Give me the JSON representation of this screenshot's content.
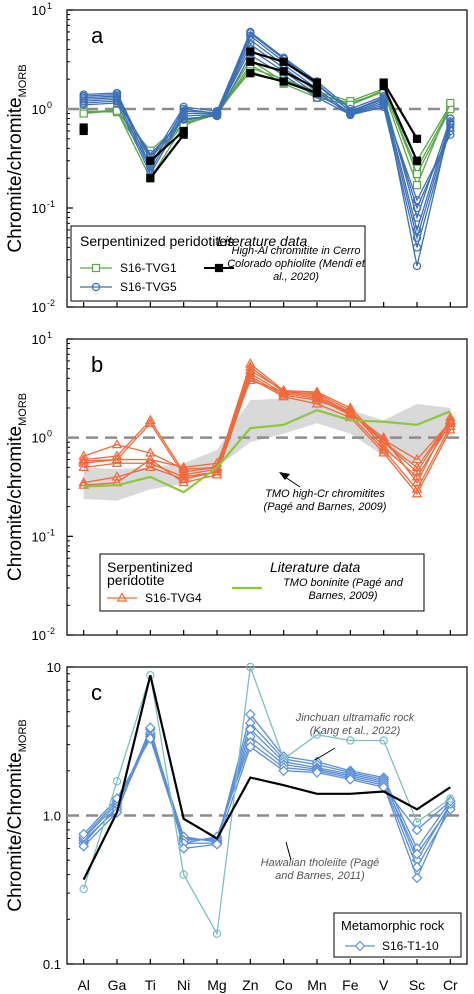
{
  "chart_data": {
    "type": "line",
    "categories": [
      "Al",
      "Ga",
      "Ti",
      "Ni",
      "Mg",
      "Zn",
      "Co",
      "Mn",
      "Fe",
      "V",
      "Sc",
      "Cr"
    ],
    "yscale": "log",
    "ylim": [
      0.01,
      10
    ],
    "reference_line": 1,
    "ylabel_main": "Chromite/chromite",
    "ylabel_sub": "MORB",
    "ylabel_main_c": "Chromite/Chromite",
    "ytick_labels": [
      "10",
      "10",
      "10",
      "10"
    ],
    "ytick_exponents": [
      "1",
      "0",
      "-1",
      "-2"
    ],
    "ytick_labels_c": [
      "10",
      "1.0",
      "0.1"
    ],
    "panels": [
      {
        "label": "a",
        "legend": {
          "sample_heading": "Serpentinized peridotites",
          "literature_heading": "Literature data",
          "items": [
            "S16-TVG1",
            "S16-TVG5"
          ],
          "literature_item": "High-Al chromitite in Cerro Colorado ophiolite (Mendi et al., 2020)"
        },
        "series": [
          {
            "name": "S16-TVG1",
            "color": "#5aa84a",
            "marker": "square-open",
            "lines": [
              [
                0.93,
                0.95,
                0.38,
                0.75,
                0.92,
                3.1,
                1.9,
                1.4,
                1.15,
                1.5,
                0.3,
                1.1
              ],
              [
                0.92,
                0.98,
                0.32,
                0.72,
                0.9,
                2.8,
                1.8,
                1.3,
                1.1,
                1.55,
                0.25,
                1.05
              ],
              [
                0.95,
                0.93,
                0.28,
                0.7,
                0.88,
                2.6,
                2.0,
                1.5,
                1.2,
                1.6,
                0.22,
                1.0
              ],
              [
                0.9,
                0.96,
                0.2,
                0.68,
                0.93,
                2.4,
                1.85,
                1.45,
                1.1,
                1.5,
                0.17,
                1.15
              ]
            ]
          },
          {
            "name": "S16-TVG5",
            "color": "#3d6fb6",
            "marker": "circle-open",
            "lines": [
              [
                1.4,
                1.45,
                0.3,
                1.05,
                0.95,
                6.0,
                3.3,
                1.9,
                1.0,
                1.35,
                0.08,
                0.8
              ],
              [
                1.3,
                1.35,
                0.27,
                0.95,
                0.92,
                5.5,
                3.0,
                1.75,
                0.95,
                1.25,
                0.06,
                0.75
              ],
              [
                1.2,
                1.25,
                0.24,
                0.9,
                0.9,
                5.0,
                2.8,
                1.6,
                0.9,
                1.15,
                0.05,
                0.7
              ],
              [
                1.1,
                1.15,
                0.22,
                0.85,
                0.88,
                4.5,
                2.6,
                1.5,
                0.87,
                1.05,
                0.04,
                0.65
              ],
              [
                1.35,
                1.4,
                0.26,
                1.0,
                0.9,
                4.0,
                2.4,
                1.4,
                0.92,
                1.2,
                0.1,
                0.6
              ],
              [
                1.25,
                1.3,
                0.33,
                0.8,
                0.85,
                3.5,
                2.2,
                1.3,
                0.88,
                1.1,
                0.12,
                0.55
              ],
              [
                1.15,
                1.2,
                0.35,
                0.78,
                0.86,
                5.8,
                3.2,
                1.8,
                0.95,
                1.3,
                0.026,
                0.72
              ]
            ]
          },
          {
            "name": "Mendi et al., 2020",
            "color": "#000000",
            "marker": "square-filled",
            "lines": [
              [
                0.65,
                null,
                0.3,
                0.6,
                null,
                3.8,
                3.0,
                1.85,
                null,
                1.85,
                0.5,
                null
              ],
              [
                0.6,
                null,
                0.2,
                0.55,
                null,
                3.0,
                2.4,
                1.6,
                null,
                1.7,
                0.3,
                null
              ],
              [
                null,
                null,
                null,
                null,
                null,
                2.3,
                1.9,
                1.45,
                null,
                null,
                null,
                null
              ]
            ]
          }
        ]
      },
      {
        "label": "b",
        "legend": {
          "sample_heading": "Serpentinized peridotite",
          "literature_heading": "Literature data",
          "items": [
            "S16-TVG4"
          ],
          "literature_item": "TMO boninite (Pagé and Barnes, 2009)"
        },
        "annotation": "TMO high-Cr chromitites (Pagé and Barnes, 2009)",
        "band_low": [
          0.24,
          0.23,
          0.3,
          0.34,
          0.5,
          0.9,
          1.1,
          1.4,
          1.1,
          0.65,
          0.55,
          1.1
        ],
        "band_high": [
          0.5,
          0.48,
          0.5,
          0.55,
          0.75,
          2.4,
          2.5,
          2.6,
          1.9,
          1.5,
          2.2,
          2.0
        ],
        "series": [
          {
            "name": "S16-TVG4",
            "color": "#f06a3c",
            "marker": "triangle-open",
            "lines": [
              [
                0.6,
                0.65,
                1.5,
                0.45,
                0.5,
                5.6,
                3.0,
                2.9,
                2.0,
                0.9,
                0.5,
                1.5
              ],
              [
                0.55,
                0.6,
                1.4,
                0.42,
                0.48,
                5.2,
                2.9,
                2.8,
                1.9,
                0.8,
                0.4,
                1.4
              ],
              [
                0.65,
                0.85,
                0.7,
                0.48,
                0.5,
                4.8,
                3.0,
                2.7,
                1.8,
                1.0,
                0.35,
                1.6
              ],
              [
                0.5,
                0.55,
                0.55,
                0.4,
                0.45,
                4.5,
                2.8,
                2.5,
                1.7,
                0.75,
                0.3,
                1.3
              ],
              [
                0.35,
                0.4,
                0.5,
                0.38,
                0.45,
                4.2,
                2.7,
                2.4,
                1.8,
                0.9,
                0.45,
                1.5
              ],
              [
                0.33,
                0.35,
                0.6,
                0.35,
                0.42,
                4.0,
                2.6,
                2.2,
                1.6,
                0.7,
                0.27,
                1.2
              ],
              [
                0.58,
                0.6,
                0.6,
                0.5,
                0.55,
                3.8,
                2.9,
                2.6,
                1.75,
                0.95,
                0.6,
                1.45
              ]
            ]
          },
          {
            "name": "TMO boninite (Pagé and Barnes, 2009)",
            "color": "#8dc63f",
            "marker": "none",
            "lines": [
              [
                0.32,
                0.33,
                0.4,
                0.28,
                0.5,
                1.25,
                1.35,
                1.9,
                1.5,
                1.45,
                1.35,
                1.85
              ]
            ]
          }
        ]
      },
      {
        "label": "c",
        "legend": {
          "sample_heading": "Metamorphic rock",
          "items": [
            "S16-T1-10"
          ]
        },
        "annotations": [
          "Jinchuan ultramafic rock (Kang et al., 2022)",
          "Hawaiian tholeiite (Pagé and Barnes, 2011)"
        ],
        "series": [
          {
            "name": "S16-T1-10",
            "color": "#5b8fd9",
            "marker": "diamond-open",
            "lines": [
              [
                0.65,
                1.15,
                3.8,
                0.65,
                0.65,
                4.8,
                2.5,
                2.3,
                2.0,
                1.8,
                0.6,
                1.25
              ],
              [
                0.68,
                1.1,
                3.5,
                0.7,
                0.68,
                4.2,
                2.4,
                2.2,
                1.95,
                1.75,
                0.5,
                1.2
              ],
              [
                0.7,
                1.2,
                3.6,
                0.72,
                0.66,
                3.8,
                2.3,
                2.1,
                1.9,
                1.7,
                0.55,
                1.15
              ],
              [
                0.72,
                1.25,
                3.4,
                0.68,
                0.7,
                3.4,
                2.2,
                2.05,
                1.85,
                1.65,
                0.45,
                1.1
              ],
              [
                0.75,
                1.3,
                3.3,
                0.65,
                0.72,
                3.1,
                2.1,
                2.0,
                1.8,
                1.6,
                0.38,
                1.2
              ],
              [
                0.62,
                1.05,
                3.9,
                0.6,
                0.64,
                2.9,
                2.0,
                1.95,
                1.75,
                1.55,
                0.8,
                1.25
              ]
            ]
          },
          {
            "name": "Jinchuan ultramafic rock (Kang et al., 2022)",
            "color": "#7fbfbf",
            "marker": "circle-open",
            "lines": [
              [
                0.32,
                1.7,
                8.8,
                0.4,
                0.16,
                10.0,
                2.4,
                3.5,
                3.2,
                3.2,
                0.9,
                1.3
              ]
            ]
          },
          {
            "name": "Hawaiian tholeiite (Pagé and Barnes, 2011)",
            "color": "#000000",
            "marker": "none",
            "lines": [
              [
                0.37,
                1.05,
                8.8,
                0.95,
                0.7,
                1.8,
                1.6,
                1.4,
                1.4,
                1.45,
                1.1,
                1.55
              ]
            ]
          }
        ]
      }
    ]
  }
}
